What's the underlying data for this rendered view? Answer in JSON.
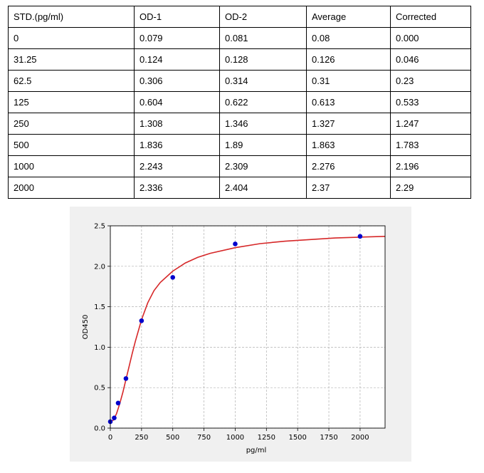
{
  "table": {
    "headers": [
      "STD.(pg/ml)",
      "OD-1",
      "OD-2",
      "Average",
      "Corrected"
    ],
    "rows": [
      [
        "0",
        "0.079",
        "0.081",
        "0.08",
        "0.000"
      ],
      [
        "31.25",
        "0.124",
        "0.128",
        "0.126",
        "0.046"
      ],
      [
        "62.5",
        "0.306",
        "0.314",
        "0.31",
        "0.23"
      ],
      [
        "125",
        "0.604",
        "0.622",
        "0.613",
        "0.533"
      ],
      [
        "250",
        "1.308",
        "1.346",
        "1.327",
        "1.247"
      ],
      [
        "500",
        "1.836",
        "1.89",
        "1.863",
        "1.783"
      ],
      [
        "1000",
        "2.243",
        "2.309",
        "2.276",
        "2.196"
      ],
      [
        "2000",
        "2.336",
        "2.404",
        "2.37",
        "2.29"
      ]
    ]
  },
  "chart_data": {
    "type": "scatter",
    "title": "",
    "xlabel": "pg/ml",
    "ylabel": "OD450",
    "xlim": [
      0,
      2200
    ],
    "ylim": [
      0,
      2.5
    ],
    "xticks": [
      0,
      250,
      500,
      750,
      1000,
      1250,
      1500,
      1750,
      2000
    ],
    "xtick_labels": [
      "0",
      "250",
      "500",
      "750",
      "1000",
      "1250",
      "1500",
      "1750",
      "2000"
    ],
    "yticks": [
      0.0,
      0.5,
      1.0,
      1.5,
      2.0,
      2.5
    ],
    "ytick_labels": [
      "0.0",
      "0.5",
      "1.0",
      "1.5",
      "2.0",
      "2.5"
    ],
    "grid": true,
    "series": [
      {
        "kind": "points",
        "color": "#0000cc",
        "x": [
          0,
          31.25,
          62.5,
          125,
          250,
          500,
          1000,
          2000
        ],
        "y": [
          0.08,
          0.126,
          0.31,
          0.613,
          1.327,
          1.863,
          2.276,
          2.37
        ]
      },
      {
        "kind": "fit-curve",
        "color": "#d62728",
        "x": [
          0,
          25,
          50,
          75,
          100,
          125,
          150,
          175,
          200,
          250,
          300,
          350,
          400,
          500,
          600,
          700,
          800,
          1000,
          1200,
          1400,
          1600,
          1800,
          2000,
          2200
        ],
        "y": [
          0.08,
          0.1,
          0.18,
          0.3,
          0.44,
          0.6,
          0.76,
          0.92,
          1.07,
          1.34,
          1.55,
          1.7,
          1.8,
          1.94,
          2.04,
          2.11,
          2.16,
          2.23,
          2.28,
          2.31,
          2.33,
          2.35,
          2.36,
          2.37
        ]
      }
    ],
    "colors": {
      "marker": "#0000cc",
      "curve": "#d62728",
      "grid": "#b0b0b0",
      "plot_bg": "#ffffff",
      "panel_bg": "#f0f0f0"
    }
  }
}
